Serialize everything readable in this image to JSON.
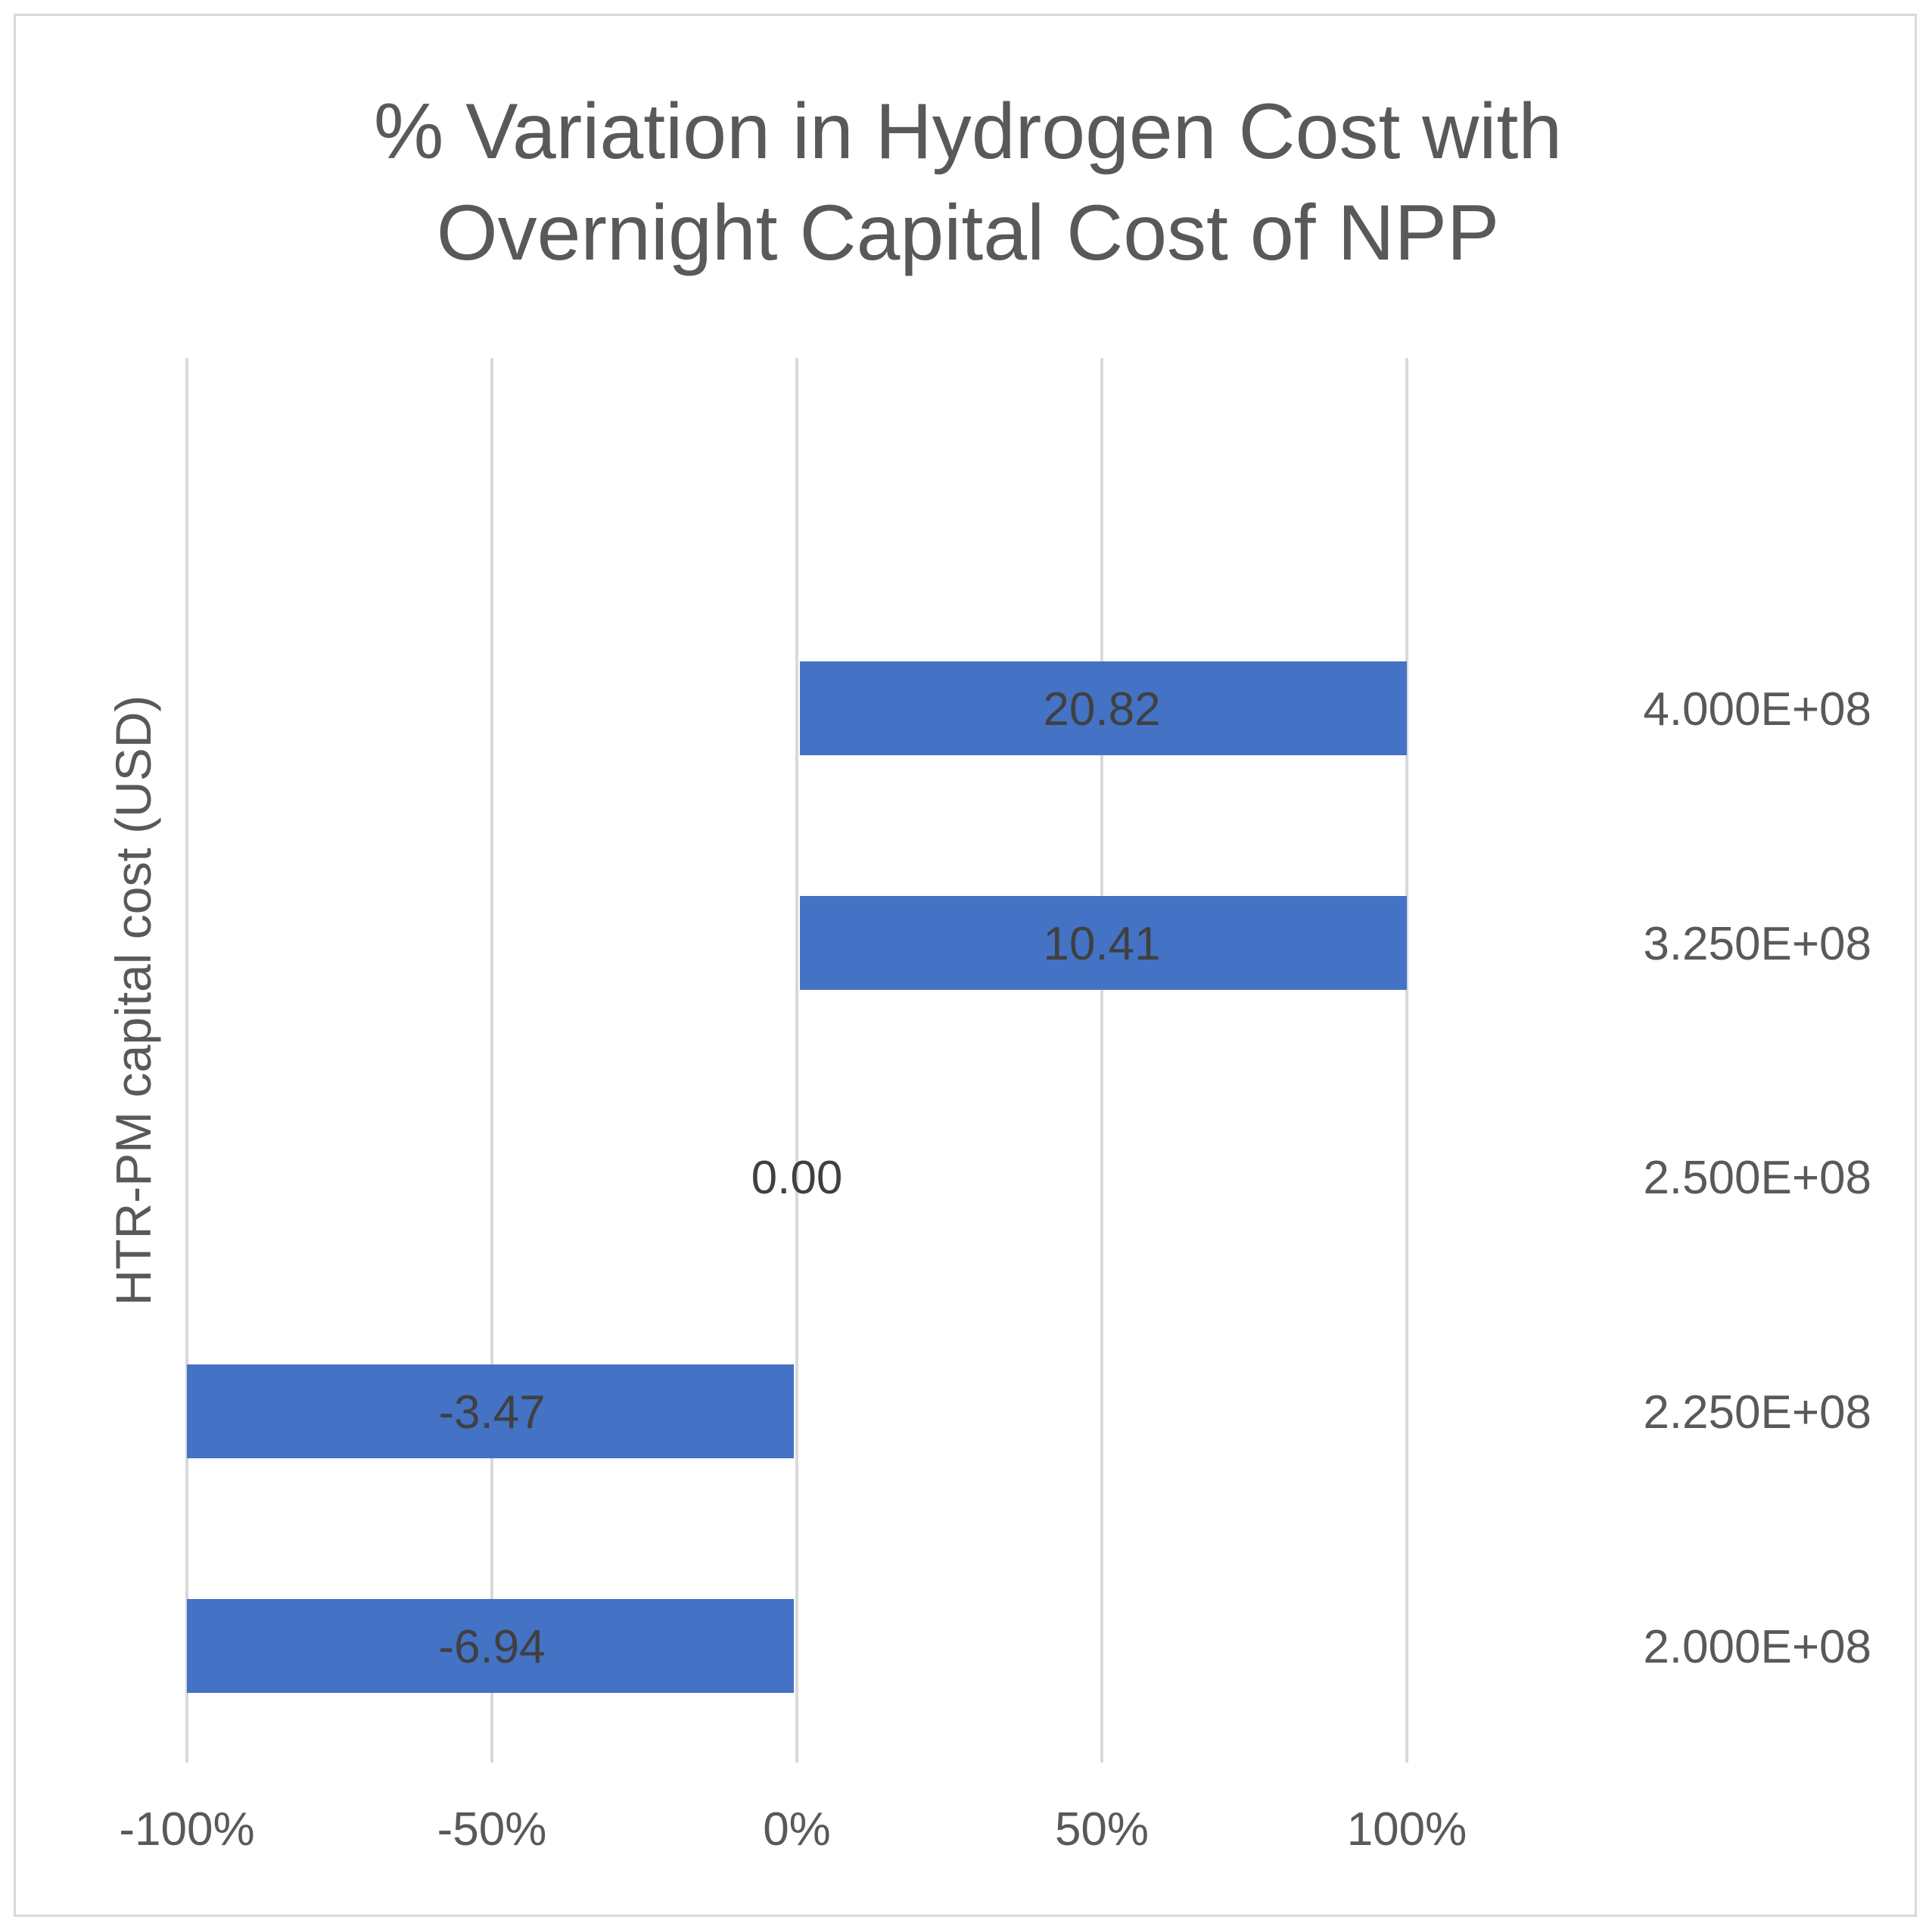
{
  "chart_data": {
    "type": "bar",
    "orientation": "horizontal",
    "title_lines": [
      "% Variation in Hydrogen Cost with",
      "Overnight Capital Cost of NPP"
    ],
    "ylabel": "HTR-PM capital cost (USD)",
    "xlabel": "",
    "categories": [
      "4.000E+08",
      "3.250E+08",
      "2.500E+08",
      "2.250E+08",
      "2.000E+08"
    ],
    "values": [
      20.82,
      10.41,
      0.0,
      -3.47,
      -6.94
    ],
    "data_labels": [
      "20.82",
      "10.41",
      "0.00",
      "-3.47",
      "-6.94"
    ],
    "bar_extent_percent": [
      100,
      100,
      0,
      -100,
      -100
    ],
    "xlim": [
      -100,
      100
    ],
    "x_ticks": [
      -100,
      -50,
      0,
      50,
      100
    ],
    "x_tick_labels": [
      "-100%",
      "-50%",
      "0%",
      "50%",
      "100%"
    ],
    "grid": true,
    "category_labels_side": "right",
    "bar_color": "#4472c4",
    "grid_color": "#d9d9d9",
    "text_color": "#595959"
  }
}
